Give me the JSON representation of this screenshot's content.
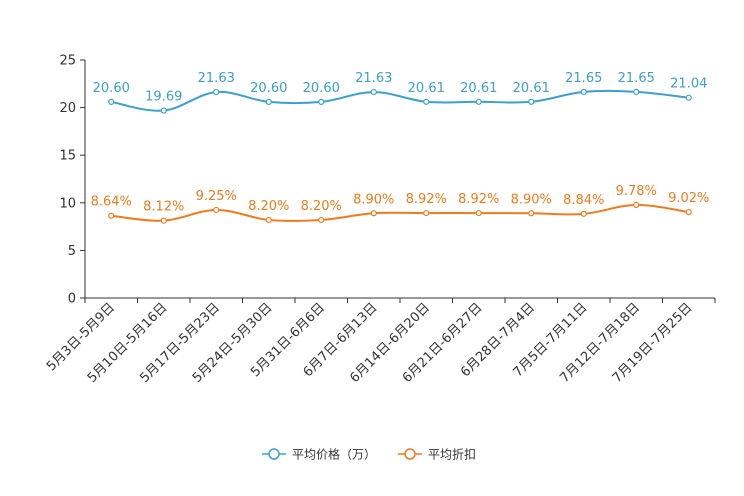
{
  "chart_data": {
    "type": "line",
    "title": "",
    "xlabel": "",
    "ylabel": "",
    "ylim": [
      0,
      25
    ],
    "yticks": [
      0,
      5,
      10,
      15,
      20,
      25
    ],
    "grid": false,
    "legend_position": "bottom-center",
    "categories": [
      "5月3日-5月9日",
      "5月10日-5月16日",
      "5月17日-5月23日",
      "5月24日-5月30日",
      "5月31日-6月6日",
      "6月7日-6月13日",
      "6月14日-6月20日",
      "6月21日-6月27日",
      "6月28日-7月4日",
      "7月5日-7月11日",
      "7月12日-7月18日",
      "7月19日-7月25日"
    ],
    "series": [
      {
        "name": "平均价格（万）",
        "color": "#3c9fcf",
        "values": [
          20.6,
          19.69,
          21.63,
          20.6,
          20.6,
          21.63,
          20.61,
          20.61,
          20.61,
          21.65,
          21.65,
          21.04
        ],
        "labels": [
          "20.60",
          "19.69",
          "21.63",
          "20.60",
          "20.60",
          "21.63",
          "20.61",
          "20.61",
          "20.61",
          "21.65",
          "21.65",
          "21.04"
        ]
      },
      {
        "name": "平均折扣",
        "color": "#f07b1d",
        "values": [
          8.64,
          8.12,
          9.25,
          8.2,
          8.2,
          8.9,
          8.92,
          8.92,
          8.9,
          8.84,
          9.78,
          9.02
        ],
        "labels": [
          "8.64%",
          "8.12%",
          "9.25%",
          "8.20%",
          "8.20%",
          "8.90%",
          "8.92%",
          "8.92%",
          "8.90%",
          "8.84%",
          "9.78%",
          "9.02%"
        ]
      }
    ]
  }
}
